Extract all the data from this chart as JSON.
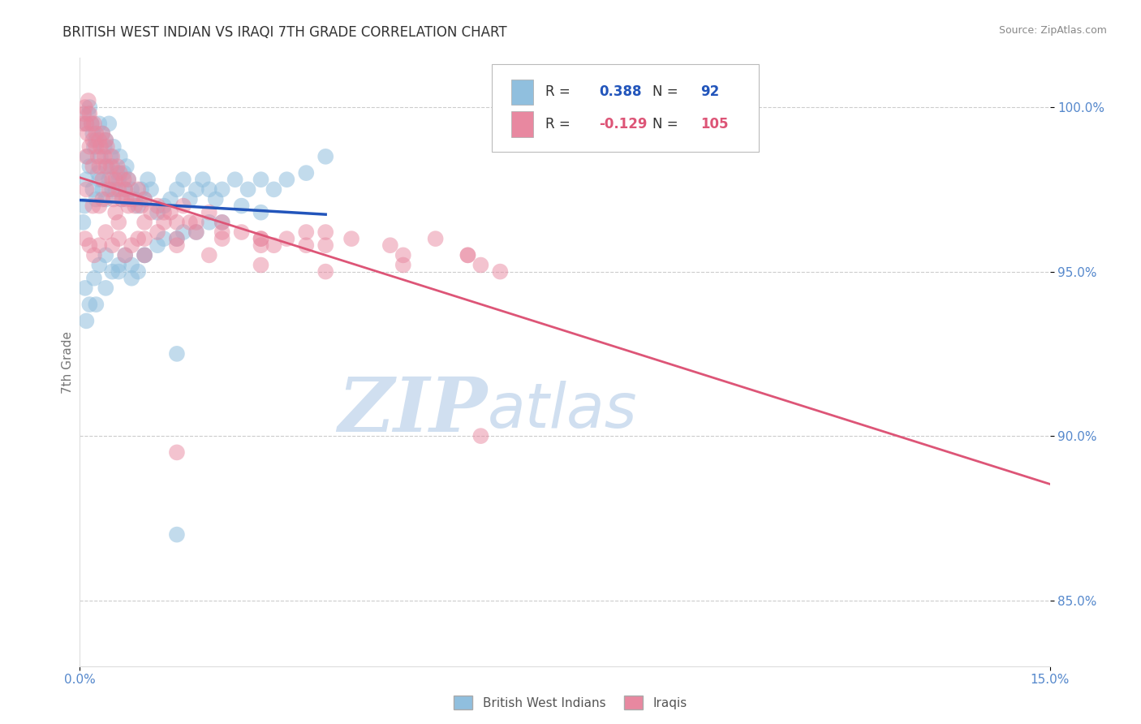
{
  "title": "BRITISH WEST INDIAN VS IRAQI 7TH GRADE CORRELATION CHART",
  "source": "Source: ZipAtlas.com",
  "ylabel": "7th Grade",
  "xmin": 0.0,
  "xmax": 15.0,
  "ymin": 83.0,
  "ymax": 101.5,
  "xtick_labels": [
    "0.0%",
    "15.0%"
  ],
  "yticks": [
    85.0,
    90.0,
    95.0,
    100.0
  ],
  "ytick_labels": [
    "85.0%",
    "90.0%",
    "95.0%",
    "100.0%"
  ],
  "legend_entries": [
    {
      "label": "British West Indians",
      "color": "#a8c4e0"
    },
    {
      "label": "Iraqis",
      "color": "#f0a0b0"
    }
  ],
  "blue_R": 0.388,
  "blue_N": 92,
  "pink_R": -0.129,
  "pink_N": 105,
  "blue_color": "#90bfde",
  "pink_color": "#e888a0",
  "blue_line_color": "#2255bb",
  "pink_line_color": "#dd5577",
  "background_color": "#ffffff",
  "grid_color": "#cccccc",
  "title_color": "#2255bb",
  "axis_label_color": "#777777",
  "tick_label_color": "#5588cc",
  "watermark_color": "#d0dff0",
  "blue_scatter_x": [
    0.05,
    0.07,
    0.1,
    0.1,
    0.12,
    0.13,
    0.15,
    0.15,
    0.18,
    0.2,
    0.2,
    0.22,
    0.25,
    0.25,
    0.28,
    0.3,
    0.3,
    0.32,
    0.35,
    0.35,
    0.38,
    0.4,
    0.4,
    0.42,
    0.45,
    0.45,
    0.48,
    0.5,
    0.5,
    0.52,
    0.55,
    0.58,
    0.6,
    0.62,
    0.65,
    0.68,
    0.7,
    0.72,
    0.75,
    0.8,
    0.85,
    0.9,
    0.95,
    1.0,
    1.05,
    1.1,
    1.2,
    1.3,
    1.4,
    1.5,
    1.6,
    1.7,
    1.8,
    1.9,
    2.0,
    2.1,
    2.2,
    2.4,
    2.6,
    2.8,
    3.0,
    3.2,
    3.5,
    3.8,
    0.08,
    0.15,
    0.22,
    0.3,
    0.4,
    0.5,
    0.6,
    0.7,
    0.8,
    0.9,
    1.0,
    1.2,
    1.5,
    1.8,
    2.2,
    2.8,
    0.1,
    0.25,
    0.4,
    0.6,
    0.8,
    1.0,
    1.3,
    1.6,
    2.0,
    2.5,
    1.5,
    1.5
  ],
  "blue_scatter_y": [
    96.5,
    97.0,
    99.5,
    97.8,
    98.5,
    99.8,
    100.0,
    98.2,
    99.5,
    99.2,
    97.5,
    98.8,
    99.0,
    97.2,
    98.0,
    99.5,
    97.8,
    98.5,
    99.2,
    97.5,
    98.8,
    99.0,
    97.2,
    98.2,
    99.5,
    97.8,
    98.5,
    98.2,
    97.5,
    98.8,
    97.5,
    98.0,
    97.8,
    98.5,
    97.2,
    98.0,
    97.5,
    98.2,
    97.8,
    97.5,
    97.2,
    97.0,
    97.5,
    97.2,
    97.8,
    97.5,
    96.8,
    97.0,
    97.2,
    97.5,
    97.8,
    97.2,
    97.5,
    97.8,
    97.5,
    97.2,
    97.5,
    97.8,
    97.5,
    97.8,
    97.5,
    97.8,
    98.0,
    98.5,
    94.5,
    94.0,
    94.8,
    95.2,
    95.5,
    95.0,
    95.2,
    95.5,
    94.8,
    95.0,
    95.5,
    95.8,
    96.0,
    96.2,
    96.5,
    96.8,
    93.5,
    94.0,
    94.5,
    95.0,
    95.2,
    95.5,
    96.0,
    96.2,
    96.5,
    97.0,
    92.5,
    87.0
  ],
  "pink_scatter_x": [
    0.05,
    0.06,
    0.08,
    0.1,
    0.1,
    0.12,
    0.13,
    0.15,
    0.15,
    0.18,
    0.2,
    0.2,
    0.22,
    0.25,
    0.25,
    0.28,
    0.3,
    0.3,
    0.32,
    0.35,
    0.35,
    0.38,
    0.4,
    0.4,
    0.42,
    0.45,
    0.48,
    0.5,
    0.5,
    0.52,
    0.55,
    0.58,
    0.6,
    0.62,
    0.65,
    0.68,
    0.7,
    0.72,
    0.75,
    0.8,
    0.85,
    0.9,
    0.95,
    1.0,
    1.1,
    1.2,
    1.3,
    1.4,
    1.5,
    1.6,
    1.8,
    2.0,
    2.2,
    2.5,
    2.8,
    3.0,
    3.2,
    3.5,
    3.8,
    4.2,
    4.8,
    5.5,
    6.0,
    0.08,
    0.15,
    0.22,
    0.3,
    0.4,
    0.5,
    0.6,
    0.7,
    0.8,
    0.9,
    1.0,
    1.2,
    1.5,
    1.8,
    2.2,
    2.8,
    3.5,
    0.1,
    0.2,
    0.35,
    0.55,
    0.75,
    1.0,
    1.3,
    1.7,
    2.2,
    2.8,
    3.8,
    5.0,
    6.2,
    0.3,
    0.6,
    1.0,
    1.5,
    2.0,
    2.8,
    3.8,
    5.0,
    6.0,
    6.5,
    1.5,
    6.2
  ],
  "pink_scatter_y": [
    99.5,
    99.8,
    100.0,
    99.5,
    98.5,
    99.2,
    100.2,
    99.8,
    98.8,
    99.5,
    99.0,
    98.2,
    99.5,
    98.8,
    99.2,
    98.5,
    99.0,
    98.2,
    98.8,
    99.2,
    97.8,
    98.5,
    99.0,
    98.2,
    98.8,
    97.5,
    98.2,
    97.8,
    98.5,
    97.2,
    97.8,
    98.2,
    97.5,
    98.0,
    97.2,
    97.8,
    97.5,
    97.2,
    97.8,
    97.2,
    97.0,
    97.5,
    97.0,
    97.2,
    96.8,
    97.0,
    96.5,
    96.8,
    96.5,
    97.0,
    96.5,
    96.8,
    96.5,
    96.2,
    96.0,
    95.8,
    96.0,
    95.8,
    96.2,
    96.0,
    95.8,
    96.0,
    95.5,
    96.0,
    95.8,
    95.5,
    95.8,
    96.2,
    95.8,
    96.0,
    95.5,
    95.8,
    96.0,
    95.5,
    96.2,
    96.0,
    96.2,
    96.0,
    95.8,
    96.2,
    97.5,
    97.0,
    97.2,
    96.8,
    97.0,
    96.5,
    96.8,
    96.5,
    96.2,
    96.0,
    95.8,
    95.5,
    95.2,
    97.0,
    96.5,
    96.0,
    95.8,
    95.5,
    95.2,
    95.0,
    95.2,
    95.5,
    95.0,
    89.5,
    90.0
  ]
}
